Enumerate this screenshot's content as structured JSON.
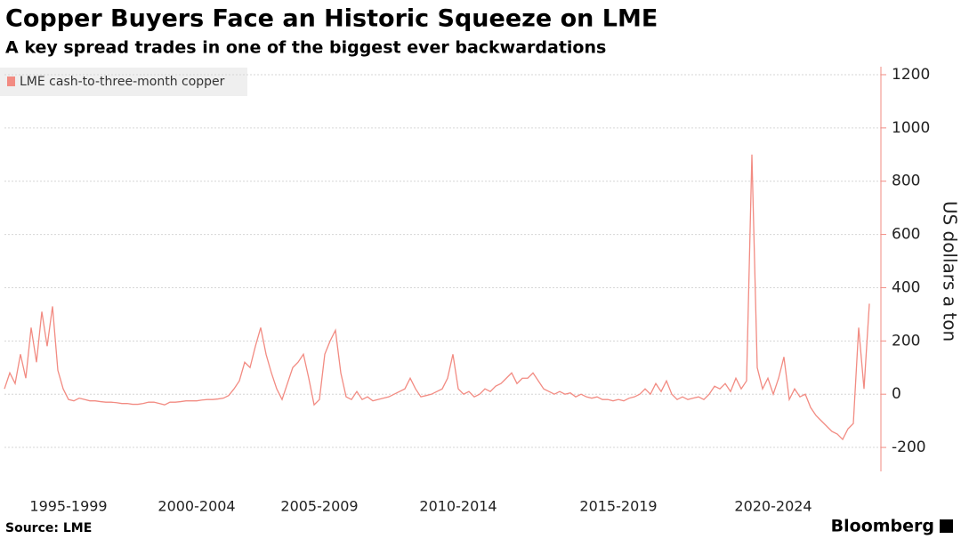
{
  "chart_data": {
    "type": "line",
    "title": "Copper Buyers Face an Historic Squeeze on LME",
    "subtitle": "A key spread trades in one of the biggest ever backwardations",
    "y_axis_label": "US dollars a ton",
    "source": "Source: LME",
    "brand": "Bloomberg",
    "ylim": [
      -290,
      1230
    ],
    "yticks": [
      -200,
      0,
      200,
      400,
      600,
      800,
      1000,
      1200
    ],
    "grid": true,
    "legend": "top-left",
    "categories": [
      null,
      null,
      null,
      null,
      null,
      null,
      null,
      null,
      null,
      null,
      null,
      null,
      "1995-1999",
      null,
      null,
      null,
      null,
      null,
      null,
      null,
      null,
      null,
      null,
      null,
      null,
      null,
      null,
      null,
      null,
      null,
      null,
      null,
      null,
      null,
      null,
      null,
      "2000-2004",
      null,
      null,
      null,
      null,
      null,
      null,
      null,
      null,
      null,
      null,
      null,
      null,
      null,
      null,
      null,
      null,
      null,
      null,
      null,
      null,
      null,
      null,
      "2005-2009",
      null,
      null,
      null,
      null,
      null,
      null,
      null,
      null,
      null,
      null,
      null,
      null,
      null,
      null,
      null,
      null,
      null,
      null,
      null,
      null,
      null,
      null,
      null,
      null,
      null,
      "2010-2014",
      null,
      null,
      null,
      null,
      null,
      null,
      null,
      null,
      null,
      null,
      null,
      null,
      null,
      null,
      null,
      null,
      null,
      null,
      null,
      null,
      null,
      null,
      null,
      null,
      null,
      null,
      null,
      null,
      null,
      "2015-2019",
      null,
      null,
      null,
      null,
      null,
      null,
      null,
      null,
      null,
      null,
      null,
      null,
      null,
      null,
      null,
      null,
      null,
      null,
      null,
      null,
      null,
      null,
      null,
      null,
      null,
      null,
      null,
      null,
      "2020-2024",
      null,
      null,
      null,
      null,
      null,
      null,
      null,
      null,
      null,
      null,
      null,
      null,
      null,
      null,
      null,
      null,
      null,
      null
    ],
    "series": [
      {
        "name": "LME cash-to-three-month copper",
        "color": "#f28b82",
        "values": [
          20,
          80,
          40,
          150,
          60,
          250,
          120,
          310,
          180,
          330,
          90,
          20,
          -20,
          -25,
          -15,
          -20,
          -25,
          -25,
          -28,
          -30,
          -30,
          -32,
          -35,
          -35,
          -38,
          -38,
          -35,
          -30,
          -30,
          -35,
          -40,
          -30,
          -30,
          -28,
          -25,
          -25,
          -25,
          -22,
          -20,
          -20,
          -18,
          -15,
          -5,
          20,
          50,
          120,
          100,
          180,
          250,
          150,
          80,
          20,
          -20,
          40,
          100,
          120,
          150,
          60,
          -40,
          -20,
          150,
          200,
          240,
          80,
          -10,
          -20,
          10,
          -20,
          -10,
          -25,
          -20,
          -15,
          -10,
          0,
          10,
          20,
          60,
          20,
          -10,
          -5,
          0,
          10,
          20,
          60,
          150,
          20,
          0,
          10,
          -10,
          0,
          20,
          10,
          30,
          40,
          60,
          80,
          40,
          60,
          60,
          80,
          50,
          20,
          10,
          0,
          10,
          0,
          5,
          -10,
          0,
          -10,
          -15,
          -10,
          -20,
          -20,
          -25,
          -20,
          -25,
          -15,
          -10,
          0,
          20,
          0,
          40,
          10,
          50,
          0,
          -20,
          -10,
          -20,
          -15,
          -10,
          -20,
          0,
          30,
          20,
          40,
          10,
          60,
          20,
          50,
          900,
          100,
          20,
          60,
          0,
          60,
          140,
          -20,
          20,
          -10,
          0,
          -50,
          -80,
          -100,
          -120,
          -140,
          -150,
          -170,
          -130,
          -110,
          250,
          20,
          340
        ]
      }
    ]
  }
}
